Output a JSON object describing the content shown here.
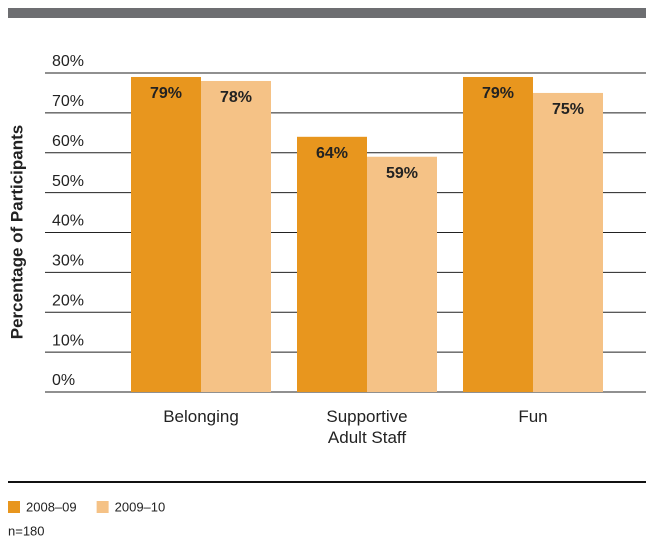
{
  "chart_data": {
    "type": "bar",
    "y_label": "Percentage of Participants",
    "categories": [
      "Belonging",
      "Supportive Adult Staff",
      "Fun"
    ],
    "series": [
      {
        "name": "2008–09",
        "color": "#e8961e",
        "values": [
          79,
          64,
          79
        ],
        "value_labels": [
          "79%",
          "64%",
          "79%"
        ]
      },
      {
        "name": "2009–10",
        "color": "#f5c286",
        "values": [
          78,
          59,
          75
        ],
        "value_labels": [
          "78%",
          "59%",
          "75%"
        ]
      }
    ],
    "ylim": [
      0,
      80
    ],
    "yticks": [
      {
        "value": 0,
        "label": "0%"
      },
      {
        "value": 10,
        "label": "10%"
      },
      {
        "value": 20,
        "label": "20%"
      },
      {
        "value": 30,
        "label": "30%"
      },
      {
        "value": 40,
        "label": "40%"
      },
      {
        "value": 50,
        "label": "50%"
      },
      {
        "value": 60,
        "label": "60%"
      },
      {
        "value": 70,
        "label": "70%"
      },
      {
        "value": 80,
        "label": "80%"
      }
    ],
    "grid": true,
    "legend": "bottom-left",
    "note": "n=180"
  }
}
